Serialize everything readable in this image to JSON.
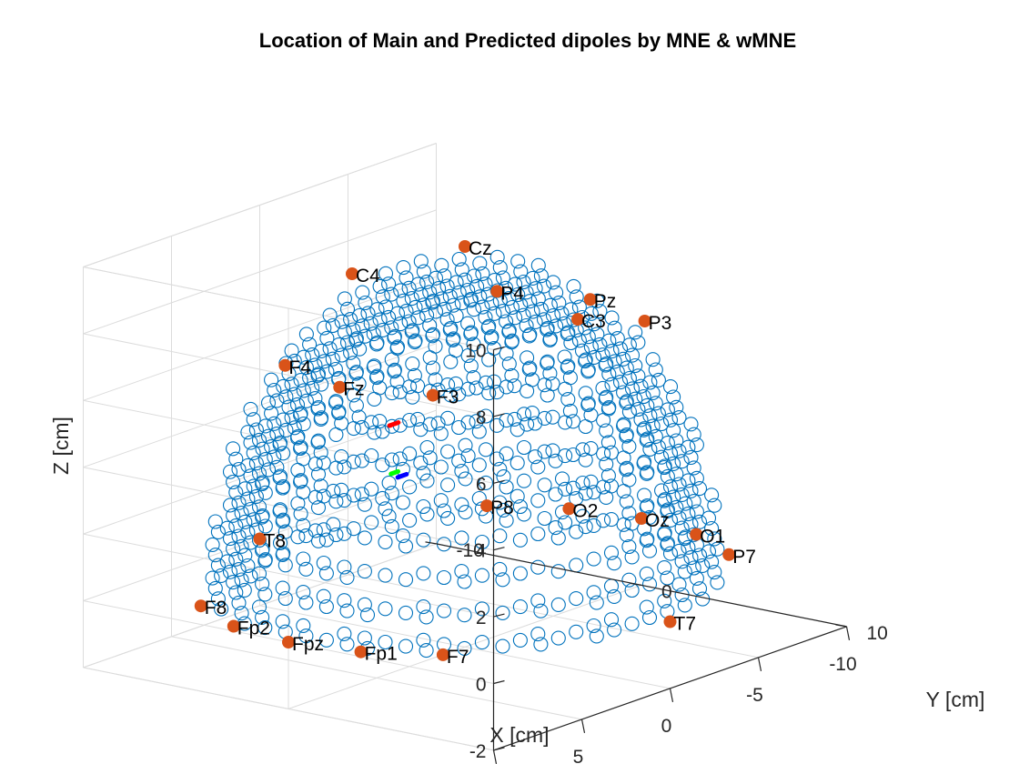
{
  "chart_data": {
    "type": "scatter",
    "title": "Location of Main and Predicted dipoles by MNE & wMNE",
    "xlabel": "X [cm]",
    "ylabel": "Y [cm]",
    "zlabel": "Z [cm]",
    "xlim": [
      -10,
      10
    ],
    "ylim": [
      -10,
      10
    ],
    "zlim": [
      -2,
      10
    ],
    "x_ticks": [
      10,
      5,
      0,
      -5,
      -10
    ],
    "y_ticks": [
      -10,
      0,
      10
    ],
    "z_ticks": [
      -2,
      0,
      2,
      4,
      6,
      8,
      10
    ],
    "grid": true,
    "legend": "none",
    "colors": {
      "source_grid": "#0072BD",
      "electrode": "#D95319",
      "main_dipole": "#FF0000",
      "mne_dipole": "#00FF00",
      "wmne_dipole": "#0000FF",
      "axis": "#262626",
      "grid": "#DCDCDC"
    },
    "source_grid": {
      "marker": "open-circle",
      "spacing_cm": 1,
      "radius_cm": 9.6,
      "z_min_cm": 0,
      "points": "hemisphere lattice of source locations"
    },
    "electrodes": [
      {
        "label": "Cz",
        "x": 0,
        "y": 0,
        "z": 10.0
      },
      {
        "label": "C4",
        "x": 0,
        "y": -5.5,
        "z": 8.5
      },
      {
        "label": "Fz",
        "x": 7.1,
        "y": 0,
        "z": 7.1
      },
      {
        "label": "F4",
        "x": 6.0,
        "y": -3.6,
        "z": 7.1
      },
      {
        "label": "Pz",
        "x": -7.1,
        "y": 0,
        "z": 7.1
      },
      {
        "label": "P4",
        "x": -6.0,
        "y": -3.6,
        "z": 7.1
      },
      {
        "label": "C3",
        "x": 0,
        "y": 5.5,
        "z": 8.5
      },
      {
        "label": "F3",
        "x": 6.0,
        "y": 3.6,
        "z": 7.1
      },
      {
        "label": "P3",
        "x": -6.0,
        "y": 3.6,
        "z": 7.1
      },
      {
        "label": "F8",
        "x": 8.1,
        "y": -5.9,
        "z": 0
      },
      {
        "label": "T8",
        "x": 0,
        "y": -10.0,
        "z": 0
      },
      {
        "label": "P8",
        "x": -8.1,
        "y": -5.9,
        "z": 0
      },
      {
        "label": "Fp2",
        "x": 9.5,
        "y": -3.1,
        "z": 0
      },
      {
        "label": "Fpz",
        "x": 10.0,
        "y": 0,
        "z": 0
      },
      {
        "label": "Fp1",
        "x": 9.5,
        "y": 3.1,
        "z": 0
      },
      {
        "label": "O2",
        "x": -9.5,
        "y": -3.1,
        "z": 0
      },
      {
        "label": "Oz",
        "x": -10.0,
        "y": 0,
        "z": 0
      },
      {
        "label": "O1",
        "x": -9.5,
        "y": 3.1,
        "z": 0
      },
      {
        "label": "F7",
        "x": 8.1,
        "y": 5.9,
        "z": 0
      },
      {
        "label": "T7",
        "x": 0,
        "y": 10.0,
        "z": 0
      },
      {
        "label": "P7",
        "x": -8.1,
        "y": 5.9,
        "z": 0
      }
    ],
    "dipoles": [
      {
        "kind": "main",
        "color": "#FF0000",
        "from": [
          5.9,
          1.4,
          5.9
        ],
        "to": [
          5.4,
          1.4,
          5.9
        ]
      },
      {
        "kind": "mne",
        "color": "#00FF00",
        "from": [
          5.0,
          0.7,
          4.2
        ],
        "to": [
          4.6,
          0.7,
          4.2
        ]
      },
      {
        "kind": "wmne",
        "color": "#0000FF",
        "from": [
          5.9,
          1.8,
          4.4
        ],
        "to": [
          5.4,
          1.8,
          4.4
        ]
      }
    ]
  }
}
